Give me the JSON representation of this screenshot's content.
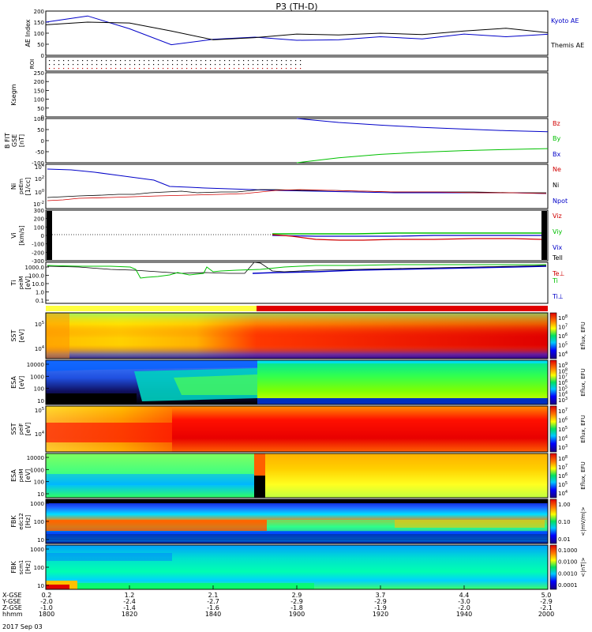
{
  "page": {
    "title": "P3 (TH-D)",
    "date_label": "2017 Sep 03",
    "colors": {
      "blue": "#0000c8",
      "black": "#000000",
      "red": "#d00000",
      "green": "#00c000",
      "yellow": "#ffff40"
    }
  },
  "chart_data": [
    {
      "type": "line",
      "name": "ae",
      "ylabel": "AE Index",
      "ylim": [
        0,
        200
      ],
      "yticks": [
        "200",
        "150",
        "100",
        "50",
        "0"
      ],
      "x": [
        0,
        5,
        10,
        15,
        20,
        25,
        30,
        35,
        40,
        45,
        50,
        55,
        60
      ],
      "series": [
        {
          "name": "Kyoto AE",
          "color": "#0000c8",
          "values": [
            150,
            178,
            120,
            48,
            72,
            82,
            68,
            70,
            84,
            74,
            96,
            84,
            95
          ]
        },
        {
          "name": "Themis AE",
          "color": "#000000",
          "values": [
            138,
            150,
            146,
            110,
            70,
            80,
            96,
            92,
            100,
            94,
            110,
            122,
            102
          ]
        }
      ]
    },
    {
      "type": "dots",
      "name": "roi",
      "ylabel": "ROI"
    },
    {
      "type": "blank",
      "name": "ksegm",
      "ylabel": "Ksegm",
      "yticks": [
        "250",
        "200",
        "150",
        "100",
        "50",
        "0"
      ]
    },
    {
      "type": "line",
      "name": "bfit",
      "ylabel": [
        "B FIT",
        "GSE",
        "[nT]"
      ],
      "ylim": [
        -100,
        100
      ],
      "yticks": [
        "100",
        "50",
        "0",
        "-50",
        "-100"
      ],
      "series": [
        {
          "name": "Bz",
          "color": "#d00000",
          "values": []
        },
        {
          "name": "By",
          "color": "#00c000",
          "x": [
            30,
            35,
            40,
            45,
            50,
            55,
            60
          ],
          "values": [
            -100,
            -78,
            -62,
            -52,
            -45,
            -40,
            -36
          ]
        },
        {
          "name": "Bx",
          "color": "#0000c8",
          "x": [
            30,
            35,
            40,
            45,
            50,
            55,
            60
          ],
          "values": [
            100,
            82,
            70,
            60,
            52,
            45,
            40
          ]
        }
      ]
    },
    {
      "type": "line",
      "name": "ni",
      "ylabel": [
        "Ni",
        "peEm",
        "[1/cc]"
      ],
      "yscale": "log",
      "yticks": [
        "10^4",
        "10^2",
        "10^0",
        "10^-2"
      ],
      "series": [
        {
          "name": "Ne",
          "color": "#d00000"
        },
        {
          "name": "Ni",
          "color": "#000000"
        },
        {
          "name": "Npot",
          "color": "#0000c8"
        }
      ]
    },
    {
      "type": "line",
      "name": "vi",
      "ylabel": [
        "Vi",
        "[km/s]"
      ],
      "ylim": [
        -300,
        300
      ],
      "yticks": [
        "300",
        "200",
        "100",
        "0",
        "-100",
        "-200",
        "-300"
      ],
      "series": [
        {
          "name": "Viz",
          "color": "#d00000"
        },
        {
          "name": "Viy",
          "color": "#00c000"
        },
        {
          "name": "Vix",
          "color": "#0000c8"
        }
      ]
    },
    {
      "type": "line",
      "name": "ti",
      "ylabel": [
        "Ti",
        "peiM",
        "[eV]"
      ],
      "yscale": "log",
      "yticks": [
        "1000.0",
        "100.0",
        "10.0",
        "1.0",
        "0.1"
      ],
      "series": [
        {
          "name": "Tell",
          "color": "#000000"
        },
        {
          "name": "Te⊥",
          "color": "#d00000"
        },
        {
          "name": "Ti",
          "color": "#00c000"
        },
        {
          "name": "Ti⊥",
          "color": "#0000c8"
        }
      ]
    },
    {
      "type": "heatmap",
      "name": "sst-e",
      "ylabel": [
        "SST",
        "[eV]"
      ],
      "yticks": [
        "10^5",
        "10^4"
      ],
      "cbar": [
        "10^8",
        "10^7",
        "10^6",
        "10^5",
        "10^4"
      ],
      "clabel": "Eflux, EFU"
    },
    {
      "type": "heatmap",
      "name": "esa-e",
      "ylabel": [
        "ESA",
        "[eV]"
      ],
      "yticks": [
        "10000",
        "1000",
        "100",
        "10"
      ],
      "cbar": [
        "10^9",
        "10^8",
        "10^7",
        "10^6",
        "10^5",
        "10^4",
        "10^3"
      ],
      "clabel": "Eflux, EFU"
    },
    {
      "type": "heatmap",
      "name": "sst-i",
      "ylabel": [
        "SST",
        "peiF",
        "[eV]"
      ],
      "yticks": [
        "10^5",
        "10^4"
      ],
      "cbar": [
        "10^7",
        "10^6",
        "10^5",
        "10^4",
        "10^3"
      ],
      "clabel": "Eflux, EFU"
    },
    {
      "type": "heatmap",
      "name": "esa-i",
      "ylabel": [
        "ESA",
        "peiM",
        "[eV]"
      ],
      "yticks": [
        "10000",
        "1000",
        "100",
        "10"
      ],
      "cbar": [
        "10^8",
        "10^7",
        "10^6",
        "10^5",
        "10^4"
      ],
      "clabel": "Eflux, EFU"
    },
    {
      "type": "heatmap",
      "name": "fbk-e",
      "ylabel": [
        "FBK",
        "edc12",
        "[Hz]"
      ],
      "yticks": [
        "1000",
        "100",
        "10"
      ],
      "cbar": [
        "1.00",
        "0.10",
        "0.01"
      ],
      "clabel": "<|mV/m|>"
    },
    {
      "type": "heatmap",
      "name": "fbk-b",
      "ylabel": [
        "FBK",
        "scm1",
        "[Hz]"
      ],
      "yticks": [
        "1000",
        "100",
        "10"
      ],
      "cbar": [
        "0.1000",
        "0.0100",
        "0.0010",
        "0.0001"
      ],
      "clabel": "<|nT|>"
    }
  ],
  "xaxis": {
    "row_labels": [
      "X-GSE",
      "Y-GSE",
      "Z-GSE",
      "hhmm"
    ],
    "ticks": [
      {
        "t": 0,
        "vals": [
          "0.2",
          "-2.0",
          "-1.0",
          "1800"
        ]
      },
      {
        "t": 10,
        "vals": [
          "1.2",
          "-2.4",
          "-1.4",
          "1820"
        ]
      },
      {
        "t": 20,
        "vals": [
          "2.1",
          "-2.7",
          "-1.6",
          "1840"
        ]
      },
      {
        "t": 30,
        "vals": [
          "2.9",
          "-2.9",
          "-1.8",
          "1900"
        ]
      },
      {
        "t": 40,
        "vals": [
          "3.7",
          "-2.9",
          "-1.9",
          "1920"
        ]
      },
      {
        "t": 50,
        "vals": [
          "4.4",
          "-3.0",
          "-2.0",
          "1940"
        ]
      },
      {
        "t": 60,
        "vals": [
          "5.0",
          "-2.9",
          "-2.1",
          "2000"
        ]
      }
    ]
  }
}
